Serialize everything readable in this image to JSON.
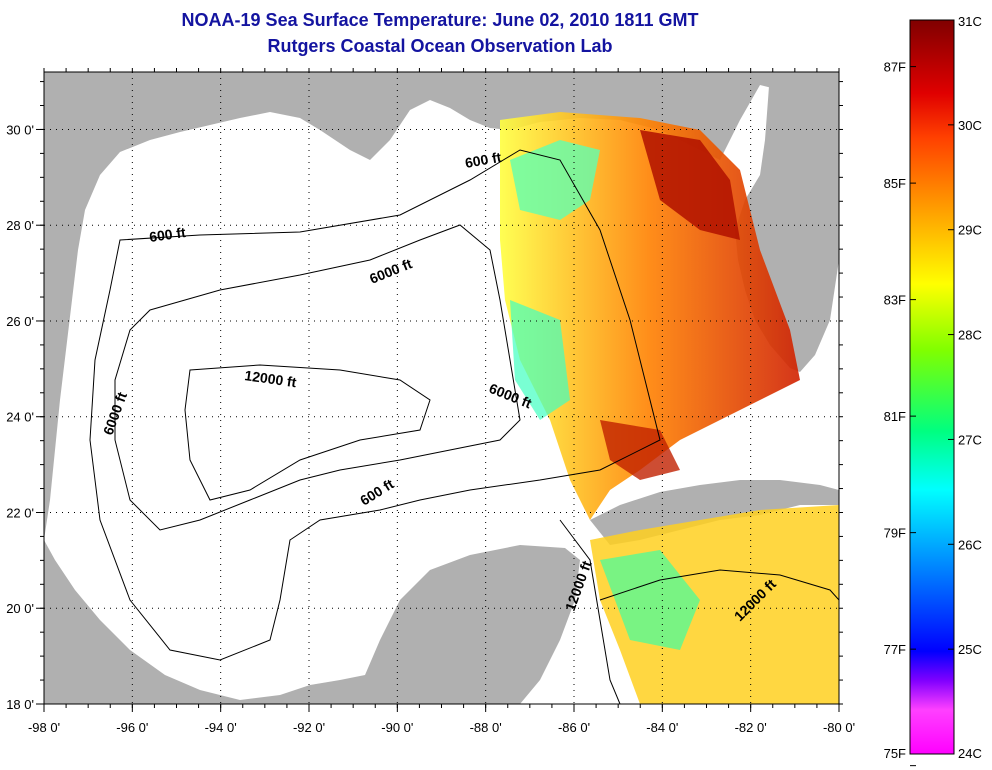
{
  "header": {
    "title": "NOAA-19 Sea Surface Temperature:  June 02, 2010 1811 GMT",
    "subtitle": "Rutgers Coastal Ocean Observation Lab"
  },
  "axes": {
    "lon_ticks": [
      {
        "value": -98,
        "label": "-98 0'"
      },
      {
        "value": -96,
        "label": "-96 0'"
      },
      {
        "value": -94,
        "label": "-94 0'"
      },
      {
        "value": -92,
        "label": "-92 0'"
      },
      {
        "value": -90,
        "label": "-90 0'"
      },
      {
        "value": -88,
        "label": "-88 0'"
      },
      {
        "value": -86,
        "label": "-86 0'"
      },
      {
        "value": -84,
        "label": "-84 0'"
      },
      {
        "value": -82,
        "label": "-82 0'"
      },
      {
        "value": -80,
        "label": "-80 0'"
      }
    ],
    "lat_ticks": [
      {
        "value": 18,
        "label": "18 0'"
      },
      {
        "value": 20,
        "label": "20 0'"
      },
      {
        "value": 22,
        "label": "22 0'"
      },
      {
        "value": 24,
        "label": "24 0'"
      },
      {
        "value": 26,
        "label": "26 0'"
      },
      {
        "value": 28,
        "label": "28 0'"
      },
      {
        "value": 30,
        "label": "30 0'"
      }
    ],
    "lon_range": [
      -98,
      -80
    ],
    "lat_range": [
      18,
      31.2
    ]
  },
  "contour_labels": [
    {
      "text": "600 ft"
    },
    {
      "text": "600 ft"
    },
    {
      "text": "6000 ft"
    },
    {
      "text": "12000 ft"
    },
    {
      "text": "6000 ft"
    },
    {
      "text": "6000 ft"
    },
    {
      "text": "600 ft"
    },
    {
      "text": "12000 ft"
    },
    {
      "text": "12000 ft"
    }
  ],
  "colorbar": {
    "celsius_ticks": [
      "31C",
      "30C",
      "29C",
      "28C",
      "27C",
      "26C",
      "25C",
      "24C"
    ],
    "fahrenheit_ticks": [
      "87F",
      "85F",
      "83F",
      "81F",
      "79F",
      "77F",
      "75F"
    ],
    "celsius_range": [
      24,
      31
    ],
    "colors": [
      "#ff00ff",
      "#6000ff",
      "#0000ff",
      "#00a0ff",
      "#00ffff",
      "#00ff80",
      "#80ff00",
      "#ffff00",
      "#ffa000",
      "#ff4000",
      "#e00000",
      "#800000"
    ]
  },
  "colors": {
    "land": "#b0b0b0",
    "ocean_cloud": "#ffffff",
    "title": "#1414a0"
  }
}
